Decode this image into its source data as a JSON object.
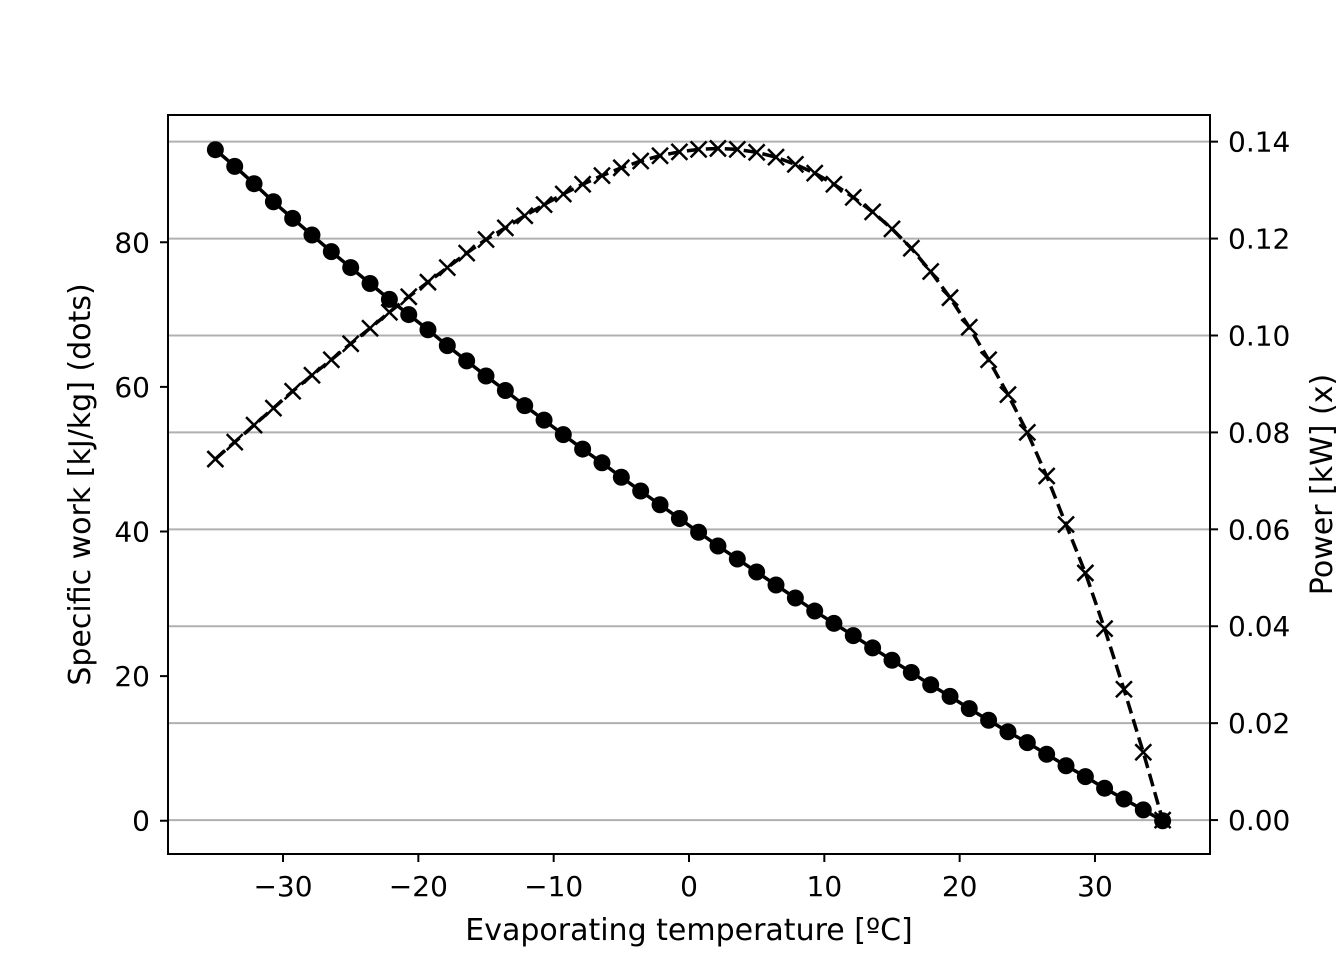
{
  "chart_data": {
    "type": "line",
    "xlabel": "Evaporating temperature [ºC]",
    "ylabel": "Specific work [kJ/kg] (dots)",
    "y2label": "Power [kW] (x)",
    "xlim": [
      -38.5,
      38.5
    ],
    "ylim": [
      -4.6,
      97.6
    ],
    "y2lim": [
      -0.007,
      0.1455
    ],
    "x_ticks": [
      -30,
      -20,
      -10,
      0,
      10,
      20,
      30
    ],
    "y_ticks": [
      0,
      20,
      40,
      60,
      80
    ],
    "y2_ticks": [
      0.0,
      0.02,
      0.04,
      0.06,
      0.08,
      0.1,
      0.12,
      0.14
    ],
    "x_tick_labels": [
      "−30",
      "−20",
      "−10",
      "0",
      "10",
      "20",
      "30"
    ],
    "y_tick_labels": [
      "0",
      "20",
      "40",
      "60",
      "80"
    ],
    "y2_tick_labels": [
      "0.00",
      "0.02",
      "0.04",
      "0.06",
      "0.08",
      "0.10",
      "0.12",
      "0.14"
    ],
    "grid": "horizontal lines at right-axis ticks",
    "legend": "none",
    "x": [
      -35.0,
      -33.57,
      -32.14,
      -30.71,
      -29.29,
      -27.86,
      -26.43,
      -25.0,
      -23.57,
      -22.14,
      -20.71,
      -19.29,
      -17.86,
      -16.43,
      -15.0,
      -13.57,
      -12.14,
      -10.71,
      -9.29,
      -7.86,
      -6.43,
      -5.0,
      -3.57,
      -2.14,
      -0.71,
      0.71,
      2.14,
      3.57,
      5.0,
      6.43,
      7.86,
      9.29,
      10.71,
      12.14,
      13.57,
      15.0,
      16.43,
      17.86,
      19.29,
      20.71,
      22.14,
      23.57,
      25.0,
      26.43,
      27.86,
      29.29,
      30.71,
      32.14,
      33.57,
      35.0
    ],
    "series": [
      {
        "name": "dots",
        "axis": "left",
        "marker": "circle",
        "line": "solid",
        "values": [
          92.8,
          90.5,
          88.1,
          85.6,
          83.3,
          81.0,
          78.7,
          76.5,
          74.3,
          72.1,
          70.0,
          67.9,
          65.7,
          63.6,
          61.5,
          59.5,
          57.4,
          55.4,
          53.4,
          51.4,
          49.5,
          47.5,
          45.6,
          43.7,
          41.8,
          39.9,
          38.0,
          36.2,
          34.4,
          32.6,
          30.8,
          29.0,
          27.3,
          25.6,
          23.9,
          22.2,
          20.5,
          18.8,
          17.2,
          15.5,
          13.9,
          12.3,
          10.8,
          9.2,
          7.6,
          6.1,
          4.5,
          3.0,
          1.5,
          0.0
        ]
      },
      {
        "name": "x",
        "axis": "right",
        "marker": "x",
        "line": "dashed",
        "values": [
          0.0745,
          0.078,
          0.0815,
          0.085,
          0.0885,
          0.0918,
          0.095,
          0.0983,
          0.1015,
          0.1048,
          0.108,
          0.111,
          0.114,
          0.117,
          0.1198,
          0.1222,
          0.1247,
          0.127,
          0.1292,
          0.1312,
          0.133,
          0.1346,
          0.136,
          0.1371,
          0.1379,
          0.1384,
          0.1386,
          0.1384,
          0.1378,
          0.1368,
          0.1353,
          0.1335,
          0.1312,
          0.1285,
          0.1255,
          0.122,
          0.118,
          0.1132,
          0.1078,
          0.1017,
          0.095,
          0.0878,
          0.08,
          0.071,
          0.061,
          0.051,
          0.0395,
          0.027,
          0.014,
          0.0
        ]
      }
    ]
  }
}
